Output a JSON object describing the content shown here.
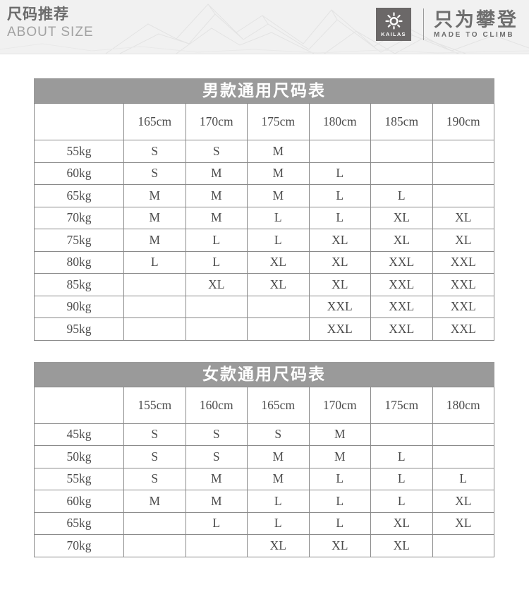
{
  "banner": {
    "title_zh": "尺码推荐",
    "title_en": "ABOUT SIZE",
    "logo": {
      "brand": "KAILAS",
      "slogan_zh": "只为攀登",
      "slogan_en": "MADE TO CLIMB",
      "sun_icon": "kailas-sun"
    }
  },
  "colors": {
    "banner_bg": "#f1f1f1",
    "table_title_bg": "#9a9a9a",
    "table_border": "#8a8a8a",
    "cell_text": "#4c4c4c",
    "logo_box_bg": "#6b6868"
  },
  "tables": [
    {
      "title": "男款通用尺码表",
      "columns": [
        "165cm",
        "170cm",
        "175cm",
        "180cm",
        "185cm",
        "190cm"
      ],
      "rows": [
        {
          "weight": "55kg",
          "sizes": [
            "S",
            "S",
            "M",
            "",
            "",
            ""
          ]
        },
        {
          "weight": "60kg",
          "sizes": [
            "S",
            "M",
            "M",
            "L",
            "",
            ""
          ]
        },
        {
          "weight": "65kg",
          "sizes": [
            "M",
            "M",
            "M",
            "L",
            "L",
            ""
          ]
        },
        {
          "weight": "70kg",
          "sizes": [
            "M",
            "M",
            "L",
            "L",
            "XL",
            "XL"
          ]
        },
        {
          "weight": "75kg",
          "sizes": [
            "M",
            "L",
            "L",
            "XL",
            "XL",
            "XL"
          ]
        },
        {
          "weight": "80kg",
          "sizes": [
            "L",
            "L",
            "XL",
            "XL",
            "XXL",
            "XXL"
          ]
        },
        {
          "weight": "85kg",
          "sizes": [
            "",
            "XL",
            "XL",
            "XL",
            "XXL",
            "XXL"
          ]
        },
        {
          "weight": "90kg",
          "sizes": [
            "",
            "",
            "",
            "XXL",
            "XXL",
            "XXL"
          ]
        },
        {
          "weight": "95kg",
          "sizes": [
            "",
            "",
            "",
            "XXL",
            "XXL",
            "XXL"
          ]
        }
      ]
    },
    {
      "title": "女款通用尺码表",
      "columns": [
        "155cm",
        "160cm",
        "165cm",
        "170cm",
        "175cm",
        "180cm"
      ],
      "rows": [
        {
          "weight": "45kg",
          "sizes": [
            "S",
            "S",
            "S",
            "M",
            "",
            ""
          ]
        },
        {
          "weight": "50kg",
          "sizes": [
            "S",
            "S",
            "M",
            "M",
            "L",
            ""
          ]
        },
        {
          "weight": "55kg",
          "sizes": [
            "S",
            "M",
            "M",
            "L",
            "L",
            "L"
          ]
        },
        {
          "weight": "60kg",
          "sizes": [
            "M",
            "M",
            "L",
            "L",
            "L",
            "XL"
          ]
        },
        {
          "weight": "65kg",
          "sizes": [
            "",
            "L",
            "L",
            "L",
            "XL",
            "XL"
          ]
        },
        {
          "weight": "70kg",
          "sizes": [
            "",
            "",
            "XL",
            "XL",
            "XL",
            ""
          ]
        }
      ]
    }
  ]
}
